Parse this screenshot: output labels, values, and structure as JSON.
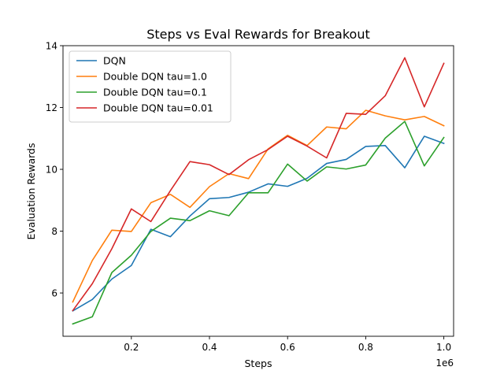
{
  "chart_data": {
    "type": "line",
    "title": "Steps vs Eval Rewards for Breakout",
    "xlabel": "Steps",
    "ylabel": "Evaluation Rewards",
    "x_offset_label": "1e6",
    "xlim": [
      0.025,
      1.025
    ],
    "ylim": [
      4.6,
      14.0
    ],
    "xticks": [
      {
        "value": 0.2,
        "label": "0.2"
      },
      {
        "value": 0.4,
        "label": "0.4"
      },
      {
        "value": 0.6,
        "label": "0.6"
      },
      {
        "value": 0.8,
        "label": "0.8"
      },
      {
        "value": 1.0,
        "label": "1.0"
      }
    ],
    "yticks": [
      {
        "value": 6,
        "label": "6"
      },
      {
        "value": 8,
        "label": "8"
      },
      {
        "value": 10,
        "label": "10"
      },
      {
        "value": 12,
        "label": "12"
      },
      {
        "value": 14,
        "label": "14"
      }
    ],
    "grid": false,
    "legend_position": "top-left",
    "x": [
      0.05,
      0.1,
      0.15,
      0.2,
      0.25,
      0.3,
      0.35,
      0.4,
      0.45,
      0.5,
      0.55,
      0.6,
      0.65,
      0.7,
      0.75,
      0.8,
      0.85,
      0.9,
      0.95,
      1.0
    ],
    "series": [
      {
        "name": "DQN",
        "color": "#1f77b4",
        "values": [
          5.42,
          5.79,
          6.45,
          6.89,
          8.06,
          7.82,
          8.49,
          9.05,
          9.09,
          9.26,
          9.53,
          9.45,
          9.71,
          10.19,
          10.32,
          10.74,
          10.77,
          10.05,
          11.07,
          10.84
        ]
      },
      {
        "name": "Double DQN tau=1.0",
        "color": "#ff7f0e",
        "values": [
          5.71,
          7.05,
          8.03,
          7.99,
          8.92,
          9.19,
          8.77,
          9.44,
          9.86,
          9.7,
          10.66,
          11.1,
          10.77,
          11.37,
          11.31,
          11.91,
          11.73,
          11.6,
          11.71,
          11.41
        ]
      },
      {
        "name": "Double DQN tau=0.1",
        "color": "#2ca02c",
        "values": [
          5.0,
          5.23,
          6.66,
          7.22,
          7.99,
          8.42,
          8.34,
          8.66,
          8.5,
          9.24,
          9.24,
          10.17,
          9.62,
          10.08,
          10.01,
          10.14,
          11.01,
          11.55,
          10.11,
          11.03
        ]
      },
      {
        "name": "Double DQN tau=0.01",
        "color": "#d62728",
        "values": [
          5.43,
          6.3,
          7.43,
          8.72,
          8.31,
          9.31,
          10.25,
          10.15,
          9.83,
          10.31,
          10.64,
          11.07,
          10.75,
          10.37,
          11.81,
          11.78,
          12.38,
          13.61,
          12.02,
          13.43
        ]
      }
    ]
  }
}
